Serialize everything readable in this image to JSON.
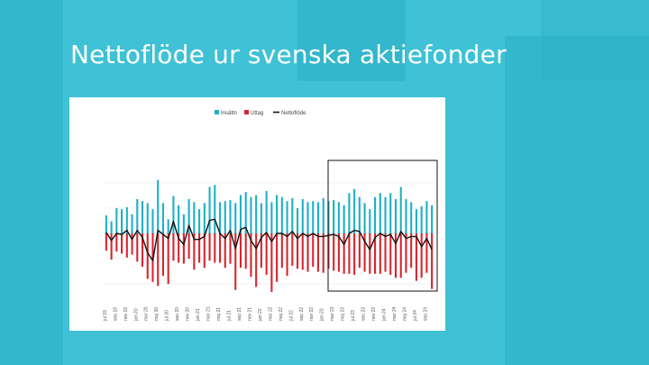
{
  "slide": {
    "title": "Nettoflöde ur svenska aktiefonder"
  },
  "colors": {
    "inflow": "#1fb0c6",
    "outflow": "#d7262f",
    "net": "#111111",
    "background": "#3fc1d6"
  },
  "chart_data": {
    "type": "bar",
    "title": "",
    "legend": {
      "placement": "top-center",
      "entries": [
        "Insättn",
        "Uttag",
        "Nettoflöde"
      ]
    },
    "categories": [
      "jul 19",
      "aug 19",
      "sep 19",
      "okt 19",
      "nov 19",
      "dec 19",
      "jan 20",
      "feb 20",
      "mar 20",
      "apr 20",
      "maj 20",
      "jun 20",
      "jul 20",
      "aug 20",
      "sep 20",
      "okt 20",
      "nov 20",
      "dec 20",
      "jan 21",
      "feb 21",
      "mar 21",
      "apr 21",
      "maj 21",
      "jun 21",
      "jul 21",
      "aug 21",
      "sep 21",
      "okt 21",
      "nov 21",
      "dec 21",
      "jan 22",
      "feb 22",
      "mar 22",
      "apr 22",
      "maj 22",
      "jun 22",
      "jul 22",
      "aug 22",
      "sep 22",
      "okt 22",
      "nov 22",
      "dec 22",
      "jan 23",
      "feb 23",
      "mar 23",
      "apr 23",
      "maj 23",
      "jun 23",
      "jul 23",
      "aug 23",
      "sep 23",
      "okt 23",
      "nov 23",
      "dec 23",
      "jan 24",
      "feb 24",
      "mar 24",
      "apr 24",
      "maj 24",
      "jun 24",
      "jul 24",
      "aug 24",
      "sep 24",
      "okt 24"
    ],
    "xtick_labels": [
      "jul 19",
      "sep 19",
      "nov 19",
      "jan 20",
      "mar 20",
      "maj 20",
      "jul 20",
      "sep 20",
      "nov 20",
      "jan 21",
      "mar 21",
      "maj 21",
      "jul 21",
      "sep 21",
      "nov 21",
      "jan 22",
      "mar 22",
      "maj 22",
      "jul 22",
      "sep 22",
      "nov 22",
      "jan 23",
      "mar 23",
      "maj 23",
      "jul 23",
      "sep 23",
      "nov 23",
      "jan 24",
      "mar 24",
      "maj 24",
      "jul 24",
      "sep 24"
    ],
    "series": [
      {
        "name": "Insättn",
        "values": [
          18,
          12,
          25,
          24,
          26,
          19,
          34,
          32,
          30,
          24,
          53,
          30,
          14,
          37,
          28,
          19,
          34,
          31,
          24,
          30,
          46,
          48,
          31,
          32,
          33,
          30,
          38,
          41,
          36,
          38,
          30,
          42,
          31,
          38,
          36,
          32,
          35,
          25,
          34,
          31,
          32,
          31,
          35,
          32,
          33,
          31,
          28,
          40,
          44,
          36,
          30,
          24,
          36,
          40,
          36,
          40,
          34,
          46,
          34,
          31,
          24,
          27,
          32,
          28
        ]
      },
      {
        "name": "Uttag",
        "values": [
          -17,
          -26,
          -18,
          -20,
          -24,
          -21,
          -28,
          -33,
          -45,
          -48,
          -52,
          -42,
          -50,
          -27,
          -29,
          -30,
          -25,
          -36,
          -29,
          -34,
          -27,
          -29,
          -29,
          -34,
          -30,
          -56,
          -34,
          -35,
          -43,
          -53,
          -34,
          -41,
          -58,
          -48,
          -34,
          -42,
          -32,
          -35,
          -36,
          -38,
          -33,
          -38,
          -39,
          -35,
          -37,
          -38,
          -40,
          -40,
          -41,
          -34,
          -38,
          -40,
          -40,
          -40,
          -38,
          -41,
          -44,
          -44,
          -39,
          -34,
          -47,
          -44,
          -39,
          -55
        ]
      },
      {
        "name": "Nettoflöde",
        "values": [
          1,
          -7,
          0,
          -1,
          3,
          -6,
          3,
          -4,
          -19,
          -27,
          3,
          -1,
          -5,
          12,
          -5,
          -11,
          8,
          -6,
          -6,
          -3,
          13,
          14,
          0,
          -5,
          3,
          -15,
          4,
          6,
          -7,
          -15,
          -4,
          1,
          -8,
          0,
          0,
          -3,
          2,
          -5,
          0,
          -3,
          0,
          -3,
          -3,
          -2,
          -1,
          -3,
          -11,
          0,
          3,
          2,
          -8,
          -16,
          -4,
          0,
          -3,
          -1,
          -10,
          2,
          -5,
          -3,
          -3,
          -13,
          -5,
          -16
        ]
      }
    ],
    "ylim": [
      -62,
      60
    ],
    "grid": true,
    "xlabel": "",
    "ylabel": ""
  }
}
